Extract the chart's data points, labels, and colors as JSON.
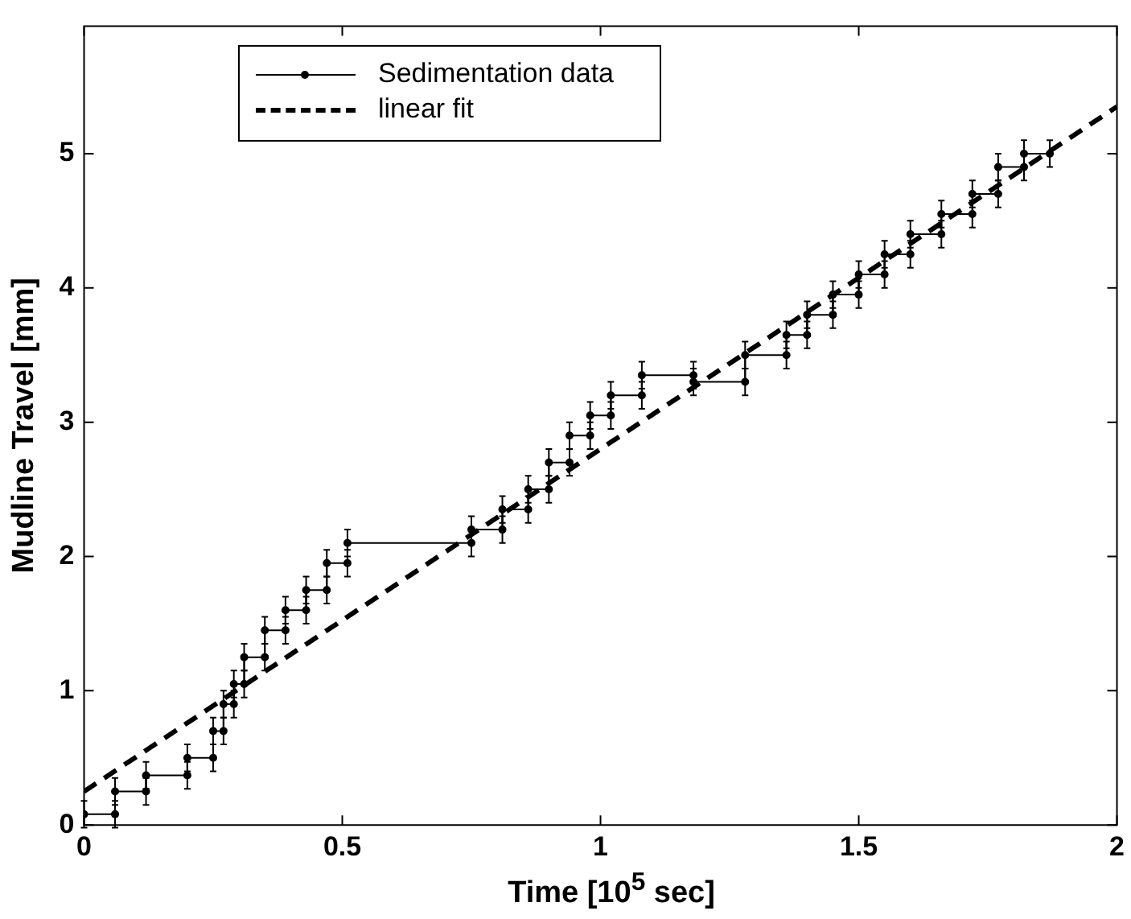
{
  "chart_data": {
    "type": "line",
    "xlabel": "Time [10$^{5}$ sec]",
    "ylabel": "Mudline Travel [mm]",
    "xlim": [
      0,
      2
    ],
    "xticks": [
      0,
      0.5,
      1,
      1.5,
      2
    ],
    "ylim": [
      0,
      5.95
    ],
    "yticks": [
      0,
      1,
      2,
      3,
      4,
      5
    ],
    "grid": false,
    "legend": "top left",
    "series": [
      {
        "name": "Sedimentation data",
        "color": "#000000",
        "marker": "circle",
        "line_style": "solid",
        "x": [
          0,
          0.06,
          0.06,
          0.12,
          0.12,
          0.2,
          0.2,
          0.25,
          0.25,
          0.27,
          0.27,
          0.29,
          0.29,
          0.31,
          0.31,
          0.35,
          0.35,
          0.39,
          0.39,
          0.43,
          0.43,
          0.47,
          0.47,
          0.51,
          0.51,
          0.75,
          0.75,
          0.81,
          0.81,
          0.86,
          0.86,
          0.9,
          0.9,
          0.94,
          0.94,
          0.98,
          0.98,
          1.02,
          1.02,
          1.08,
          1.08,
          1.18,
          1.18,
          1.28,
          1.28,
          1.36,
          1.36,
          1.4,
          1.4,
          1.45,
          1.45,
          1.5,
          1.5,
          1.55,
          1.55,
          1.6,
          1.6,
          1.66,
          1.66,
          1.72,
          1.72,
          1.77,
          1.77,
          1.82,
          1.82,
          1.87
        ],
        "values": [
          0.08,
          0.08,
          0.25,
          0.25,
          0.37,
          0.37,
          0.5,
          0.5,
          0.7,
          0.7,
          0.9,
          0.9,
          1.05,
          1.05,
          1.25,
          1.25,
          1.45,
          1.45,
          1.6,
          1.6,
          1.75,
          1.75,
          1.95,
          1.95,
          2.1,
          2.1,
          2.2,
          2.2,
          2.35,
          2.35,
          2.5,
          2.5,
          2.7,
          2.7,
          2.9,
          2.9,
          3.05,
          3.05,
          3.2,
          3.2,
          3.35,
          3.35,
          3.3,
          3.3,
          3.5,
          3.5,
          3.65,
          3.65,
          3.8,
          3.8,
          3.95,
          3.95,
          4.1,
          4.1,
          4.25,
          4.25,
          4.4,
          4.4,
          4.55,
          4.55,
          4.7,
          4.7,
          4.9,
          4.9,
          5.0,
          5.0
        ],
        "errors": [
          0.1,
          0.1,
          0.1,
          0.1,
          0.1,
          0.1,
          0.1,
          0.1,
          0.1,
          0.1,
          0.1,
          0.1,
          0.1,
          0.1,
          0.1,
          0.1,
          0.1,
          0.1,
          0.1,
          0.1,
          0.1,
          0.1,
          0.1,
          0.1,
          0.1,
          0.1,
          0.1,
          0.1,
          0.1,
          0.1,
          0.1,
          0.1,
          0.1,
          0.1,
          0.1,
          0.1,
          0.1,
          0.1,
          0.1,
          0.1,
          0.1,
          0.1,
          0.1,
          0.1,
          0.1,
          0.1,
          0.1,
          0.1,
          0.1,
          0.1,
          0.1,
          0.1,
          0.1,
          0.1,
          0.1,
          0.1,
          0.1,
          0.1,
          0.1,
          0.1,
          0.1,
          0.1,
          0.1,
          0.1,
          0.1,
          0.1
        ]
      },
      {
        "name": "linear fit",
        "color": "#000000",
        "marker": "none",
        "line_style": "dashed",
        "x": [
          0,
          2
        ],
        "values": [
          0.25,
          5.35
        ]
      }
    ]
  }
}
